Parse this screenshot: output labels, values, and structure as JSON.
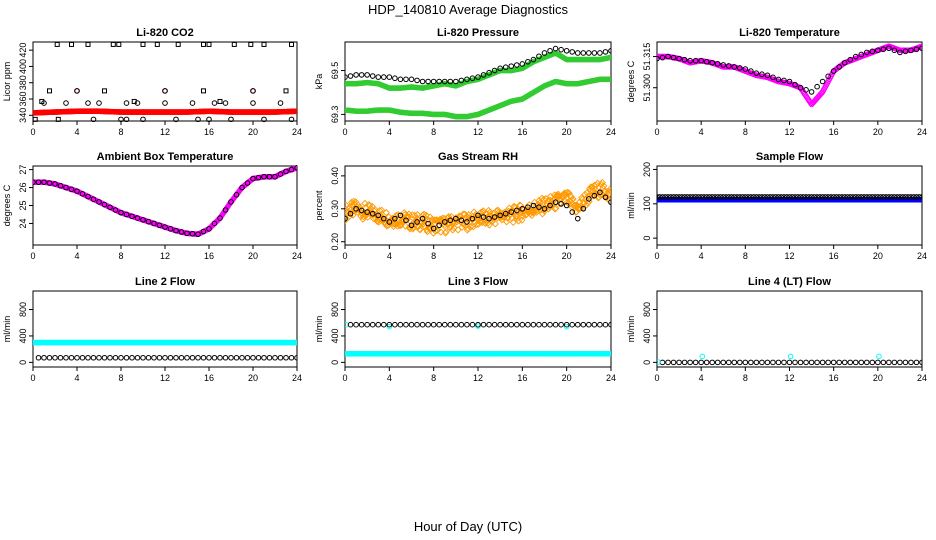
{
  "figure": {
    "title": "HDP_140810  Average Diagnostics",
    "xlabel": "Hour of Day (UTC)"
  },
  "chart_data": [
    {
      "type": "scatter",
      "title": "Li-820 CO2",
      "ylabel": "Licor ppm",
      "xlim": [
        0,
        24
      ],
      "ylim": [
        333,
        430
      ],
      "x_ticks": [
        "0",
        "4",
        "8",
        "12",
        "16",
        "20",
        "24"
      ],
      "y_ticks": [
        "340",
        "360",
        "380",
        "400",
        "420"
      ],
      "series": [
        {
          "color": "#ff0000",
          "marker": "circle",
          "fill": true,
          "step": 0.05,
          "from": 0,
          "to": 24,
          "y": [
            343,
            344,
            345,
            345,
            344,
            344,
            344,
            344,
            345,
            344,
            344,
            344,
            345
          ]
        },
        {
          "color": "#ff0000",
          "marker": "circle",
          "fill": false,
          "points": [
            [
              4,
              370
            ],
            [
              12,
              370
            ],
            [
              20,
              370
            ]
          ]
        },
        {
          "color": "#000000",
          "marker": "circle",
          "fill": false,
          "points": [
            [
              1,
              355
            ],
            [
              3,
              355
            ],
            [
              5,
              355
            ],
            [
              6,
              355
            ],
            [
              8.5,
              355
            ],
            [
              9.5,
              355
            ],
            [
              12,
              355
            ],
            [
              14.5,
              355
            ],
            [
              16.5,
              355
            ],
            [
              17.5,
              355
            ],
            [
              20,
              355
            ],
            [
              22.5,
              355
            ],
            [
              4,
              370
            ],
            [
              12,
              370
            ],
            [
              20,
              370
            ],
            [
              5.5,
              335
            ],
            [
              8,
              335
            ],
            [
              8.5,
              335
            ],
            [
              10,
              335
            ],
            [
              13,
              335
            ],
            [
              15,
              335
            ],
            [
              16,
              335
            ],
            [
              18,
              335
            ],
            [
              21,
              335
            ],
            [
              23.5,
              335
            ]
          ]
        },
        {
          "color": "#000000",
          "marker": "square",
          "fill": false,
          "points": [
            [
              2.2,
              427
            ],
            [
              3.5,
              427
            ],
            [
              5,
              427
            ],
            [
              7.3,
              427
            ],
            [
              7.8,
              427
            ],
            [
              10,
              427
            ],
            [
              11.3,
              427
            ],
            [
              13.2,
              427
            ],
            [
              15.5,
              427
            ],
            [
              16,
              427
            ],
            [
              18.3,
              427
            ],
            [
              19.8,
              427
            ],
            [
              21,
              427
            ],
            [
              23.5,
              427
            ],
            [
              0.2,
              335
            ],
            [
              2.3,
              335
            ],
            [
              0.8,
              357
            ],
            [
              9.2,
              357
            ],
            [
              17,
              357
            ],
            [
              1.5,
              370
            ],
            [
              6.5,
              370
            ],
            [
              15.5,
              370
            ],
            [
              23,
              370
            ]
          ]
        }
      ]
    },
    {
      "type": "scatter",
      "title": "Li-820 Pressure",
      "ylabel": "kPa",
      "xlim": [
        0,
        24
      ],
      "ylim": [
        69.27,
        69.63
      ],
      "x_ticks": [
        "0",
        "4",
        "8",
        "12",
        "16",
        "20",
        "24"
      ],
      "y_ticks": [
        "69.3",
        "69.5"
      ],
      "series": [
        {
          "color": "#33cc33",
          "marker": "circle",
          "fill": true,
          "step": 0.1,
          "from": 0,
          "to": 24,
          "y": [
            69.44,
            69.44,
            69.445,
            69.44,
            69.42,
            69.42,
            69.425,
            69.42,
            69.43,
            69.44,
            69.43,
            69.45,
            69.46,
            69.48,
            69.5,
            69.5,
            69.51,
            69.54,
            69.56,
            69.58,
            69.55,
            69.55,
            69.55,
            69.55,
            69.56
          ]
        },
        {
          "color": "#33cc33",
          "marker": "circle",
          "fill": true,
          "step": 0.1,
          "from": 0,
          "to": 24,
          "y": [
            69.32,
            69.315,
            69.315,
            69.32,
            69.32,
            69.31,
            69.305,
            69.305,
            69.3,
            69.3,
            69.29,
            69.29,
            69.3,
            69.32,
            69.34,
            69.36,
            69.37,
            69.4,
            69.43,
            69.45,
            69.44,
            69.44,
            69.45,
            69.46,
            69.46
          ]
        },
        {
          "color": "#000000",
          "marker": "circle",
          "fill": false,
          "step": 0.5,
          "from": 0,
          "to": 24,
          "y": [
            69.47,
            69.48,
            69.48,
            69.47,
            69.47,
            69.46,
            69.46,
            69.45,
            69.45,
            69.45,
            69.45,
            69.46,
            69.47,
            69.49,
            69.51,
            69.52,
            69.53,
            69.55,
            69.58,
            69.6,
            69.59,
            69.58,
            69.58,
            69.58,
            69.59
          ]
        }
      ]
    },
    {
      "type": "scatter",
      "title": "Li-820 Temperature",
      "ylabel": "degrees C",
      "xlim": [
        0,
        24
      ],
      "ylim": [
        51.284,
        51.322
      ],
      "x_ticks": [
        "0",
        "4",
        "8",
        "12",
        "16",
        "20",
        "24"
      ],
      "y_ticks": [
        "51.300",
        "51.315"
      ],
      "series": [
        {
          "color": "#ff00ff",
          "marker": "circle",
          "fill": false,
          "step": 0.08,
          "from": 0,
          "to": 24,
          "y": [
            51.315,
            51.315,
            51.314,
            51.312,
            51.313,
            51.312,
            51.31,
            51.31,
            51.308,
            51.306,
            51.305,
            51.303,
            51.302,
            51.3,
            51.292,
            51.298,
            51.308,
            51.312,
            51.314,
            51.316,
            51.318,
            51.32,
            51.318,
            51.318,
            51.32
          ]
        },
        {
          "color": "#000000",
          "marker": "circle",
          "fill": false,
          "step": 0.5,
          "from": 0,
          "to": 24,
          "y": [
            51.314,
            51.315,
            51.314,
            51.313,
            51.313,
            51.312,
            51.311,
            51.31,
            51.309,
            51.307,
            51.306,
            51.304,
            51.303,
            51.3,
            51.298,
            51.303,
            51.308,
            51.312,
            51.315,
            51.317,
            51.318,
            51.319,
            51.317,
            51.318,
            51.319
          ]
        }
      ]
    },
    {
      "type": "scatter",
      "title": "Ambient Box Temperature",
      "ylabel": "degrees C",
      "xlim": [
        0,
        24
      ],
      "ylim": [
        22.8,
        27.2
      ],
      "x_ticks": [
        "0",
        "4",
        "8",
        "12",
        "16",
        "20",
        "24"
      ],
      "y_ticks": [
        "24",
        "25",
        "26",
        "27"
      ],
      "series": [
        {
          "color": "#ff00ff",
          "marker": "circle",
          "fill": true,
          "step": 0.1,
          "from": 0,
          "to": 24,
          "y": [
            26.3,
            26.3,
            26.2,
            26.0,
            25.8,
            25.5,
            25.2,
            24.9,
            24.6,
            24.4,
            24.2,
            24.0,
            23.8,
            23.6,
            23.45,
            23.4,
            23.7,
            24.3,
            25.2,
            26.0,
            26.5,
            26.6,
            26.6,
            26.9,
            27.1
          ]
        },
        {
          "color": "#000000",
          "marker": "circle",
          "fill": false,
          "step": 0.5,
          "from": 0,
          "to": 24,
          "y": [
            26.3,
            26.3,
            26.2,
            26.0,
            25.8,
            25.5,
            25.2,
            24.9,
            24.6,
            24.4,
            24.2,
            24.0,
            23.8,
            23.6,
            23.45,
            23.4,
            23.7,
            24.3,
            25.2,
            26.0,
            26.5,
            26.6,
            26.6,
            26.9,
            27.1
          ]
        }
      ]
    },
    {
      "type": "scatter",
      "title": "Gas Stream RH",
      "ylabel": "percent",
      "xlim": [
        0,
        24
      ],
      "ylim": [
        0.19,
        0.43
      ],
      "x_ticks": [
        "0",
        "4",
        "8",
        "12",
        "16",
        "20",
        "24"
      ],
      "y_ticks": [
        "0.20",
        "0.30",
        "0.40"
      ],
      "series": [
        {
          "color": "#ff9900",
          "marker": "diamond",
          "fill": false,
          "step": 0.06,
          "from": 0,
          "to": 24,
          "spread": 0.05,
          "y": [
            0.29,
            0.3,
            0.29,
            0.28,
            0.27,
            0.27,
            0.26,
            0.26,
            0.25,
            0.25,
            0.26,
            0.26,
            0.27,
            0.27,
            0.28,
            0.28,
            0.29,
            0.3,
            0.31,
            0.32,
            0.33,
            0.3,
            0.34,
            0.36,
            0.34
          ]
        },
        {
          "color": "#000000",
          "marker": "circle",
          "fill": false,
          "step": 0.5,
          "from": 0,
          "to": 24,
          "y": [
            0.27,
            0.3,
            0.29,
            0.28,
            0.26,
            0.28,
            0.25,
            0.27,
            0.24,
            0.26,
            0.27,
            0.26,
            0.28,
            0.27,
            0.28,
            0.29,
            0.3,
            0.31,
            0.3,
            0.32,
            0.31,
            0.27,
            0.33,
            0.35,
            0.32
          ]
        }
      ]
    },
    {
      "type": "scatter",
      "title": "Sample Flow",
      "ylabel": "ml/min",
      "xlim": [
        0,
        24
      ],
      "ylim": [
        -20,
        210
      ],
      "x_ticks": [
        "0",
        "4",
        "8",
        "12",
        "16",
        "20",
        "24"
      ],
      "y_ticks": [
        "0",
        "100",
        "200"
      ],
      "series": [
        {
          "color": "#0000ff",
          "marker": "circle",
          "fill": true,
          "step": 0.05,
          "from": 0,
          "to": 24,
          "y": [
            112,
            112
          ]
        },
        {
          "color": "#000000",
          "marker": "circle",
          "fill": false,
          "step": 0.25,
          "from": 0,
          "to": 24,
          "y": [
            120,
            120
          ]
        }
      ]
    },
    {
      "type": "scatter",
      "title": "Line 2 Flow",
      "ylabel": "ml/min",
      "xlim": [
        0,
        24
      ],
      "ylim": [
        -70,
        1080
      ],
      "x_ticks": [
        "0",
        "4",
        "8",
        "12",
        "16",
        "20",
        "24"
      ],
      "y_ticks": [
        "0",
        "400",
        "800"
      ],
      "series": [
        {
          "color": "#00ffff",
          "marker": "circle",
          "fill": true,
          "step": 0.1,
          "from": 0,
          "to": 24,
          "y": [
            300,
            300
          ]
        },
        {
          "color": "#000000",
          "marker": "circle",
          "fill": false,
          "step": 0.5,
          "from": 0.5,
          "to": 24,
          "y": [
            70,
            70
          ]
        }
      ]
    },
    {
      "type": "scatter",
      "title": "Line 3 Flow",
      "ylabel": "ml/min",
      "xlim": [
        0,
        24
      ],
      "ylim": [
        -70,
        1080
      ],
      "x_ticks": [
        "0",
        "4",
        "8",
        "12",
        "16",
        "20",
        "24"
      ],
      "y_ticks": [
        "0",
        "400",
        "800"
      ],
      "series": [
        {
          "color": "#00ffff",
          "marker": "circle",
          "fill": true,
          "step": 0.1,
          "from": 0,
          "to": 24,
          "y": [
            130,
            130
          ]
        },
        {
          "color": "#00ffff",
          "marker": "circle",
          "fill": false,
          "points": [
            [
              0.1,
              570
            ],
            [
              4,
              540
            ],
            [
              12,
              550
            ],
            [
              20,
              540
            ]
          ]
        },
        {
          "color": "#000000",
          "marker": "circle",
          "fill": false,
          "step": 0.5,
          "from": 0.5,
          "to": 24,
          "y": [
            570,
            570
          ]
        }
      ]
    },
    {
      "type": "scatter",
      "title": "Line 4 (LT) Flow",
      "ylabel": "ml/min",
      "xlim": [
        0,
        24
      ],
      "ylim": [
        -70,
        1080
      ],
      "x_ticks": [
        "0",
        "4",
        "8",
        "12",
        "16",
        "20",
        "24"
      ],
      "y_ticks": [
        "0",
        "400",
        "800"
      ],
      "series": [
        {
          "color": "#000000",
          "marker": "circle",
          "fill": false,
          "step": 0.5,
          "from": 0.5,
          "to": 24,
          "y": [
            0,
            0
          ]
        },
        {
          "color": "#00ffff",
          "marker": "circle",
          "fill": false,
          "points": [
            [
              0.1,
              5
            ],
            [
              4.1,
              90
            ],
            [
              12.1,
              90
            ],
            [
              20.1,
              90
            ]
          ]
        }
      ]
    }
  ]
}
